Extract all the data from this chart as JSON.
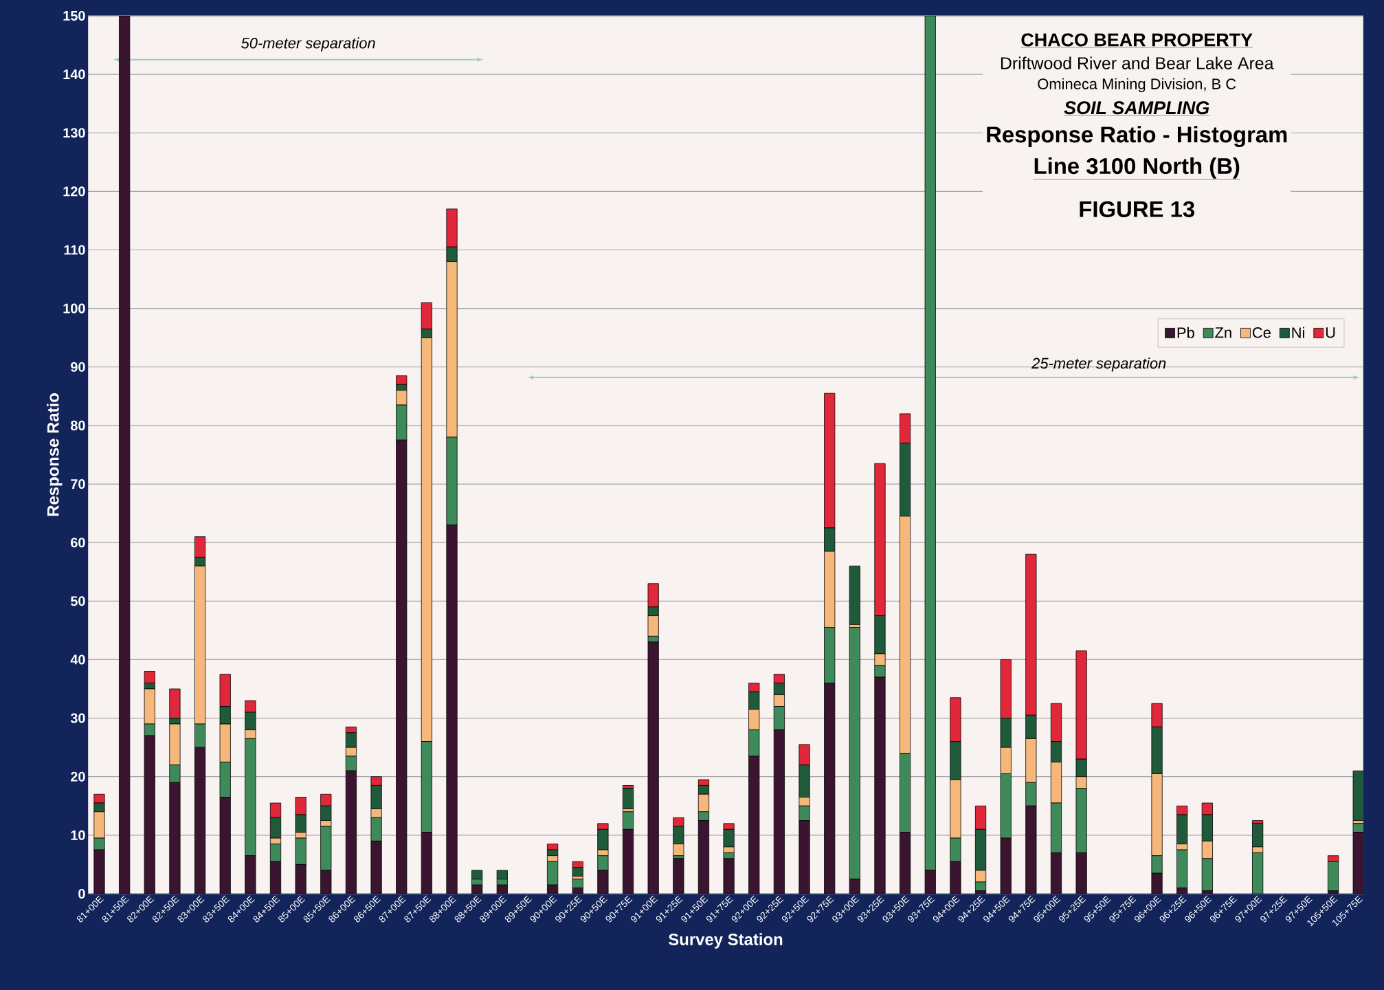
{
  "chart_data": {
    "type": "bar",
    "stacked": true,
    "title": "Response Ratio - Histogram",
    "subtitle": "Line 3100 North (B)",
    "xlabel": "Survey Station",
    "ylabel": "Response Ratio",
    "annotations": [
      "CHACO BEAR PROPERTY",
      "Driftwood River and Bear Lake Area",
      "Omineca Mining Division, B C",
      "SOIL SAMPLING",
      "FIGURE  13",
      "50-meter separation",
      "25-meter separation"
    ],
    "categories": [
      "81+00E",
      "81+50E",
      "82+00E",
      "82+50E",
      "83+00E",
      "83+50E",
      "84+00E",
      "84+50E",
      "85+00E",
      "85+50E",
      "86+00E",
      "86+50E",
      "87+00E",
      "87+50E",
      "88+00E",
      "88+50E",
      "89+00E",
      "89+50E",
      "90+00E",
      "90+25E",
      "90+50E",
      "90+75E",
      "91+00E",
      "91+25E",
      "91+50E",
      "91+75E",
      "92+00E",
      "92+25E",
      "92+50E",
      "92+75E",
      "93+00E",
      "93+25E",
      "93+50E",
      "93+75E",
      "94+00E",
      "94+25E",
      "94+50E",
      "94+75E",
      "95+00E",
      "95+25E",
      "95+50E",
      "95+75E",
      "96+00E",
      "96+25E",
      "96+50E",
      "96+75E",
      "97+00E",
      "97+25E",
      "97+50E",
      "105+50E",
      "105+75E"
    ],
    "series": [
      {
        "name": "Pb",
        "color": "#3b1530",
        "values": [
          7.5,
          150,
          27,
          19,
          25,
          16.5,
          6.5,
          5.5,
          5,
          4,
          21,
          9,
          77.5,
          10.5,
          63,
          1.5,
          1.5,
          0,
          1.5,
          1,
          4,
          11,
          43,
          6,
          12.5,
          6,
          23.5,
          28,
          12.5,
          36,
          2.5,
          37,
          10.5,
          4,
          5.5,
          0.5,
          9.5,
          15,
          7,
          7,
          0,
          0,
          3.5,
          1,
          0.5,
          0,
          0,
          0,
          0,
          0.5,
          10.5
        ]
      },
      {
        "name": "Zn",
        "color": "#3f8a5a",
        "values": [
          2,
          0,
          2,
          3,
          4,
          6,
          20,
          3,
          4.5,
          7.5,
          2.5,
          4,
          6,
          15.5,
          15,
          1,
          1,
          0,
          4,
          1.5,
          2.5,
          3,
          1,
          0.5,
          1.5,
          1,
          4.5,
          4,
          2.5,
          9.5,
          43,
          2,
          13.5,
          146,
          4,
          1.5,
          11,
          4,
          8.5,
          11,
          0,
          0,
          3,
          6.5,
          5.5,
          0,
          7,
          0,
          0,
          5,
          1.5
        ]
      },
      {
        "name": "Ce",
        "color": "#f5b87a",
        "values": [
          4.5,
          0,
          6,
          7,
          27,
          6.5,
          1.5,
          1,
          1,
          1,
          1.5,
          1.5,
          2.5,
          69,
          30,
          0,
          0,
          0,
          1,
          0.5,
          1,
          0.5,
          3.5,
          2,
          3,
          1,
          3.5,
          2,
          1.5,
          13,
          0.5,
          2,
          40.5,
          0,
          10,
          2,
          4.5,
          7.5,
          7,
          2,
          0,
          0,
          14,
          1,
          3,
          0,
          1,
          0,
          0,
          0,
          0.5
        ]
      },
      {
        "name": "Ni",
        "color": "#1f5a3a",
        "values": [
          1.5,
          0,
          1,
          1,
          1.5,
          3,
          3,
          3.5,
          3,
          2.5,
          2.5,
          4,
          1,
          1.5,
          2.5,
          1.5,
          1.5,
          0,
          1,
          1.5,
          3.5,
          3.5,
          1.5,
          3,
          1.5,
          3,
          3,
          2,
          5.5,
          4,
          10,
          6.5,
          12.5,
          0,
          6.5,
          7,
          5,
          4,
          3.5,
          3,
          0,
          0,
          8,
          5,
          4.5,
          0,
          4,
          0,
          0,
          0,
          8.5
        ]
      },
      {
        "name": "U",
        "color": "#e0283a",
        "values": [
          1.5,
          0,
          2,
          5,
          3.5,
          5.5,
          2,
          2.5,
          3,
          2,
          1,
          1.5,
          1.5,
          4.5,
          6.5,
          0,
          0,
          0,
          1,
          1,
          1,
          0.5,
          4,
          1.5,
          1,
          1,
          1.5,
          1.5,
          3.5,
          23,
          0,
          26,
          5,
          0,
          7.5,
          4,
          10,
          27.5,
          6.5,
          18.5,
          0,
          0,
          4,
          1.5,
          2,
          0,
          0.5,
          0,
          0,
          1,
          0
        ]
      }
    ],
    "ylim": [
      0,
      150
    ],
    "yticks": [
      0,
      10,
      20,
      30,
      40,
      50,
      60,
      70,
      80,
      90,
      100,
      110,
      120,
      130,
      140,
      150
    ],
    "grid": "y",
    "legend": "right"
  }
}
